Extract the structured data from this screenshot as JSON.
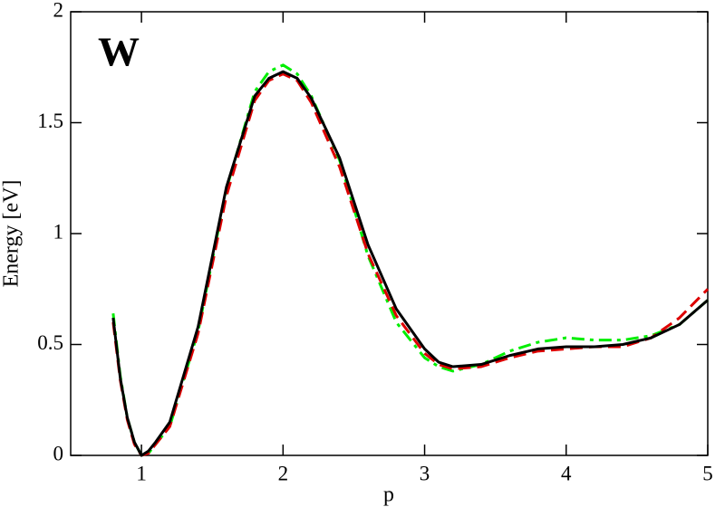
{
  "chart_data": {
    "type": "line",
    "annotation": "W",
    "x_label": "p",
    "y_label": "Energy [eV]",
    "x": [
      0.8,
      0.85,
      0.9,
      0.95,
      1.0,
      1.05,
      1.1,
      1.2,
      1.4,
      1.6,
      1.8,
      1.9,
      2.0,
      2.1,
      2.2,
      2.4,
      2.6,
      2.8,
      3.0,
      3.1,
      3.2,
      3.4,
      3.6,
      3.8,
      4.0,
      4.2,
      4.4,
      4.6,
      4.8,
      5.0
    ],
    "series": [
      {
        "color": "#00ee00",
        "dash": "14,6,4,6",
        "values": [
          0.64,
          0.36,
          0.17,
          0.06,
          0.0,
          0.01,
          0.05,
          0.13,
          0.56,
          1.2,
          1.64,
          1.73,
          1.76,
          1.72,
          1.62,
          1.33,
          0.9,
          0.6,
          0.44,
          0.4,
          0.38,
          0.41,
          0.47,
          0.51,
          0.53,
          0.52,
          0.52,
          0.54,
          0.59,
          0.7
        ]
      },
      {
        "color": "#dd0000",
        "dash": "14,7",
        "values": [
          0.6,
          0.34,
          0.16,
          0.05,
          0.0,
          0.01,
          0.05,
          0.13,
          0.55,
          1.17,
          1.6,
          1.69,
          1.72,
          1.69,
          1.59,
          1.3,
          0.91,
          0.63,
          0.46,
          0.41,
          0.39,
          0.4,
          0.44,
          0.47,
          0.48,
          0.49,
          0.49,
          0.53,
          0.62,
          0.75
        ]
      },
      {
        "color": "#000000",
        "dash": "none",
        "values": [
          0.62,
          0.35,
          0.17,
          0.06,
          0.0,
          0.02,
          0.06,
          0.15,
          0.58,
          1.21,
          1.62,
          1.7,
          1.73,
          1.7,
          1.61,
          1.34,
          0.95,
          0.66,
          0.48,
          0.42,
          0.4,
          0.41,
          0.45,
          0.48,
          0.49,
          0.49,
          0.5,
          0.53,
          0.59,
          0.7
        ]
      }
    ],
    "xlim": [
      0.5,
      5
    ],
    "ylim": [
      0,
      2
    ],
    "xticks": [
      1,
      2,
      3,
      4,
      5
    ],
    "yticks": [
      0,
      0.5,
      1,
      1.5,
      2
    ]
  }
}
